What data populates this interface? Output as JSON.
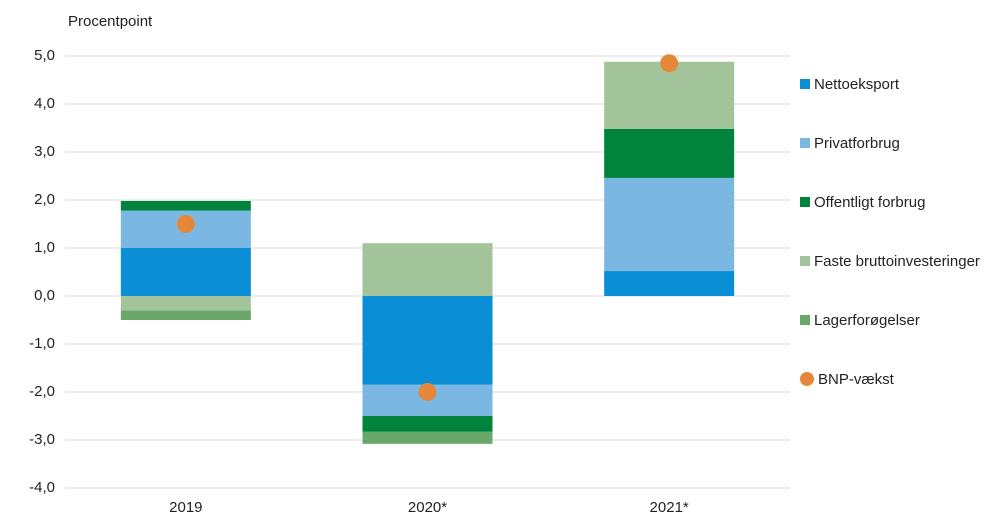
{
  "chart_data": {
    "type": "bar",
    "stacked": true,
    "y_label": "Procentpoint",
    "categories": [
      "2019",
      "2020*",
      "2021*"
    ],
    "series": [
      {
        "name": "Nettoeksport",
        "color": "#0a8fd6",
        "values": [
          1.0,
          -1.85,
          0.52
        ]
      },
      {
        "name": "Privatforbrug",
        "color": "#7ab8e3",
        "values": [
          0.78,
          -0.65,
          1.94
        ]
      },
      {
        "name": "Offentligt forbrug",
        "color": "#00843d",
        "values": [
          0.2,
          -0.33,
          1.02
        ]
      },
      {
        "name": "Faste bruttoinvesteringer",
        "color": "#a3c49a",
        "values": [
          -0.3,
          1.1,
          1.4
        ]
      },
      {
        "name": "Lagerforøgelser",
        "color": "#6aa86a",
        "values": [
          -0.2,
          -0.25,
          0
        ]
      },
      {
        "name": "BNP-vækst",
        "type": "scatter",
        "color": "#e5883a",
        "values": [
          1.5,
          -2.0,
          4.85
        ]
      }
    ],
    "ylim": [
      -4,
      5
    ],
    "yticks": [
      {
        "value": -4,
        "label": "-4,0"
      },
      {
        "value": -3,
        "label": "-3,0"
      },
      {
        "value": -2,
        "label": "-2,0"
      },
      {
        "value": -1,
        "label": "-1,0"
      },
      {
        "value": 0,
        "label": "0,0"
      },
      {
        "value": 1,
        "label": "1,0"
      },
      {
        "value": 2,
        "label": "2,0"
      },
      {
        "value": 3,
        "label": "3,0"
      },
      {
        "value": 4,
        "label": "4,0"
      },
      {
        "value": 5,
        "label": "5,0"
      }
    ],
    "grid": true
  }
}
